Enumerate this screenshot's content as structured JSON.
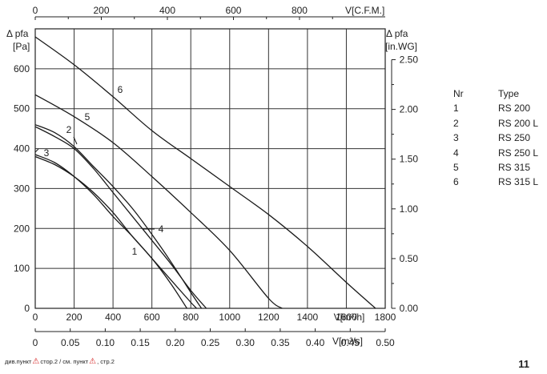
{
  "chart_data": {
    "type": "line",
    "x_unit_label": "V[m³/h]",
    "x_secondary_label": "V[m³/s]",
    "x_top_label": "V[C.F.M.]",
    "y_label_left": "Δ pfa",
    "y_unit_left": "[Pa]",
    "y_label_right": "Δ pfa",
    "y_unit_right": "[in.WG]",
    "xlim": [
      0,
      1800
    ],
    "ylim": [
      0,
      700
    ],
    "x_ticks": [
      "0",
      "200",
      "400",
      "600",
      "800",
      "1000",
      "1200",
      "1400",
      "1600",
      "1800"
    ],
    "x_secondary_ticks": [
      "0",
      "0.05",
      "0.10",
      "0.15",
      "0.20",
      "0.25",
      "0.30",
      "0.35",
      "0.40",
      "0.45",
      "0.50"
    ],
    "x_top_ticks": [
      "0",
      "200",
      "400",
      "600",
      "800"
    ],
    "y_ticks": [
      "0",
      "100",
      "200",
      "300",
      "400",
      "500",
      "600"
    ],
    "y_right_ticks": [
      "0.00",
      "0.50",
      "1.00",
      "1.50",
      "2.00",
      "2.50"
    ],
    "grid": true,
    "series": [
      {
        "name": "1",
        "x": [
          0,
          100,
          200,
          300,
          400,
          500,
          600,
          700,
          780
        ],
        "y": [
          380,
          360,
          330,
          290,
          240,
          180,
          125,
          60,
          0
        ]
      },
      {
        "name": "2",
        "x": [
          0,
          100,
          200,
          300,
          400,
          500,
          600,
          700,
          800,
          855
        ],
        "y": [
          460,
          440,
          405,
          355,
          305,
          250,
          185,
          115,
          40,
          0
        ]
      },
      {
        "name": "3",
        "x": [
          0,
          100,
          200,
          300,
          400,
          500,
          600,
          700,
          800,
          830
        ],
        "y": [
          385,
          365,
          330,
          285,
          230,
          180,
          125,
          70,
          15,
          0
        ]
      },
      {
        "name": "4",
        "x": [
          0,
          100,
          200,
          300,
          400,
          500,
          600,
          700,
          800,
          880
        ],
        "y": [
          455,
          430,
          400,
          350,
          290,
          230,
          170,
          110,
          45,
          0
        ]
      },
      {
        "name": "5",
        "x": [
          0,
          200,
          400,
          600,
          800,
          1000,
          1200,
          1270
        ],
        "y": [
          535,
          480,
          415,
          330,
          240,
          145,
          25,
          0
        ]
      },
      {
        "name": "6",
        "x": [
          0,
          200,
          400,
          600,
          800,
          1000,
          1200,
          1400,
          1600,
          1750
        ],
        "y": [
          680,
          610,
          530,
          445,
          375,
          305,
          235,
          155,
          65,
          0
        ]
      }
    ],
    "annotations": [
      "1",
      "2",
      "3",
      "4",
      "5",
      "6"
    ]
  },
  "legend": {
    "header_nr": "Nr",
    "header_type": "Type",
    "rows": [
      {
        "nr": "1",
        "type": "RS 200"
      },
      {
        "nr": "2",
        "type": "RS 200 L"
      },
      {
        "nr": "3",
        "type": "RS 250"
      },
      {
        "nr": "4",
        "type": "RS 250 L"
      },
      {
        "nr": "5",
        "type": "RS 315"
      },
      {
        "nr": "6",
        "type": "RS 315 L"
      }
    ]
  },
  "footer": {
    "text_a": "див.пункт",
    "text_b": "стор.2 / см. пункт",
    "text_c": ", стр.2",
    "page_number": "11"
  },
  "colors": {
    "line": "#1a1a1a",
    "warning": "#d42020"
  }
}
